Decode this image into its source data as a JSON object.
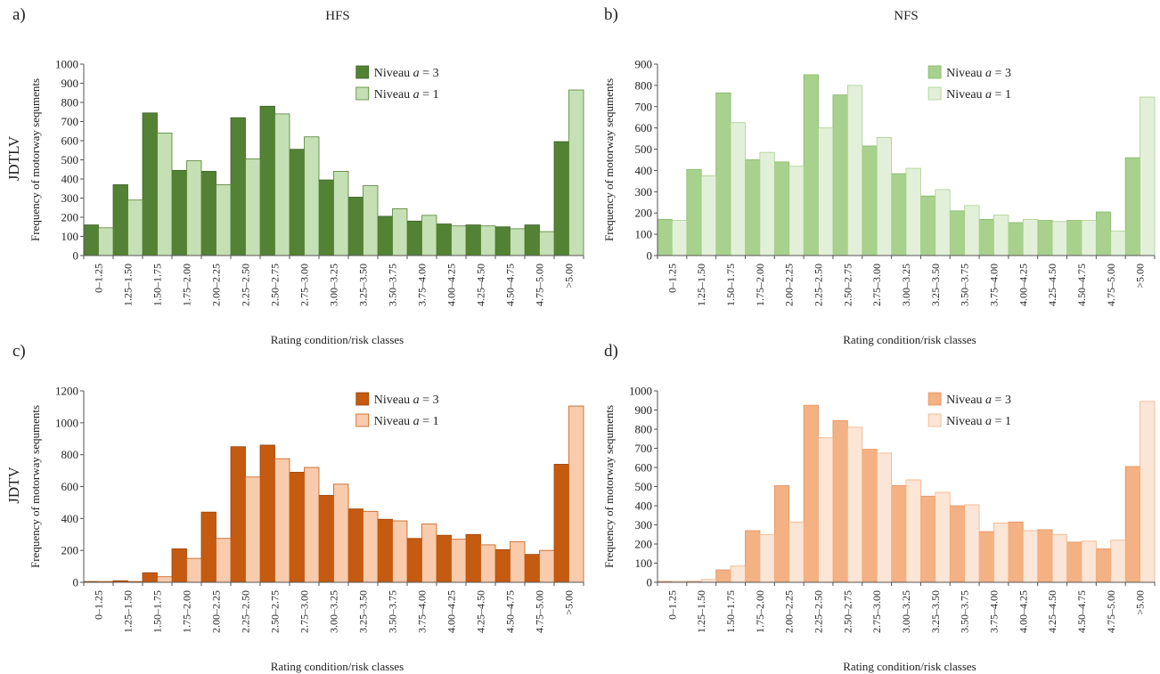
{
  "figure": {
    "panel_labels": [
      "a)",
      "b)",
      "c)",
      "d)"
    ],
    "column_titles": [
      "HFS",
      "NFS"
    ],
    "row_labels": [
      "JDTLV",
      "JDTV"
    ]
  },
  "categories": [
    "0–1.25",
    "1.25–1.50",
    "1.50–1.75",
    "1.75–2.00",
    "2.00–2.25",
    "2.25–2.50",
    "2.50–2.75",
    "2.75–3.00",
    "3.00–3.25",
    "3.25–3.50",
    "3.50–3.75",
    "3.75–4.00",
    "4.00–4.25",
    "4.25–4.50",
    "4.50–4.75",
    "4.75–5.00",
    ">5.00"
  ],
  "chart_data": [
    {
      "panel": "a)",
      "title": "HFS",
      "row_label": "JDTLV",
      "type": "bar",
      "xlabel": "Rating condition/risk classes",
      "ylabel": "Frequency of motorway sequments",
      "ylim": [
        0,
        1000
      ],
      "yticks": [
        0,
        100,
        200,
        300,
        400,
        500,
        600,
        700,
        800,
        900,
        1000
      ],
      "legend": "top-right",
      "series": [
        {
          "name": "Niveau a = 3",
          "color": "#548235",
          "stroke": "#3d6326",
          "values": [
            160,
            370,
            745,
            445,
            440,
            720,
            780,
            555,
            395,
            305,
            205,
            180,
            165,
            160,
            150,
            160,
            595
          ]
        },
        {
          "name": "Niveau a = 1",
          "color": "#c5e0b4",
          "stroke": "#548235",
          "values": [
            145,
            290,
            640,
            495,
            370,
            505,
            740,
            620,
            440,
            365,
            245,
            210,
            155,
            155,
            140,
            125,
            865
          ]
        }
      ]
    },
    {
      "panel": "b)",
      "title": "NFS",
      "type": "bar",
      "xlabel": "Rating condition/risk classes",
      "ylabel": "Frequency of motorway sequments",
      "ylim": [
        0,
        900
      ],
      "yticks": [
        0,
        100,
        200,
        300,
        400,
        500,
        600,
        700,
        800,
        900
      ],
      "legend": "top-right",
      "series": [
        {
          "name": "Niveau a = 3",
          "color": "#a9d18e",
          "stroke": "#85b769",
          "values": [
            170,
            405,
            765,
            450,
            440,
            850,
            755,
            515,
            385,
            280,
            210,
            170,
            155,
            165,
            165,
            205,
            460
          ]
        },
        {
          "name": "Niveau a = 1",
          "color": "#e2f0d9",
          "stroke": "#a9d18e",
          "values": [
            165,
            375,
            625,
            485,
            420,
            600,
            800,
            555,
            410,
            310,
            235,
            190,
            170,
            160,
            165,
            115,
            745
          ]
        }
      ]
    },
    {
      "panel": "c)",
      "row_label": "JDTV",
      "type": "bar",
      "xlabel": "Rating condition/risk classes",
      "ylabel": "Frequency of motorway sequments",
      "ylim": [
        0,
        1200
      ],
      "yticks": [
        0,
        200,
        400,
        600,
        800,
        1000,
        1200
      ],
      "legend": "top-right",
      "series": [
        {
          "name": "Niveau a = 3",
          "color": "#c55a11",
          "stroke": "#9c460c",
          "values": [
            5,
            10,
            60,
            210,
            440,
            850,
            860,
            690,
            545,
            460,
            395,
            275,
            295,
            300,
            205,
            175,
            740
          ]
        },
        {
          "name": "Niveau a = 1",
          "color": "#f8cbad",
          "stroke": "#c55a11",
          "values": [
            5,
            5,
            35,
            150,
            275,
            660,
            775,
            720,
            615,
            445,
            385,
            365,
            270,
            235,
            255,
            200,
            1105
          ]
        }
      ]
    },
    {
      "panel": "d)",
      "type": "bar",
      "xlabel": "Rating condition/risk classes",
      "ylabel": "Frequency of motorway sequments",
      "ylim": [
        0,
        1000
      ],
      "yticks": [
        0,
        100,
        200,
        300,
        400,
        500,
        600,
        700,
        800,
        900,
        1000
      ],
      "legend": "top-right",
      "series": [
        {
          "name": "Niveau a = 3",
          "color": "#f4b183",
          "stroke": "#e39462",
          "values": [
            5,
            5,
            65,
            270,
            505,
            925,
            845,
            695,
            505,
            450,
            400,
            265,
            315,
            275,
            210,
            175,
            605
          ]
        },
        {
          "name": "Niveau a = 1",
          "color": "#fbe5d6",
          "stroke": "#f4b183",
          "values": [
            5,
            15,
            85,
            250,
            315,
            755,
            810,
            675,
            535,
            470,
            405,
            310,
            270,
            250,
            215,
            220,
            945
          ]
        }
      ]
    }
  ]
}
